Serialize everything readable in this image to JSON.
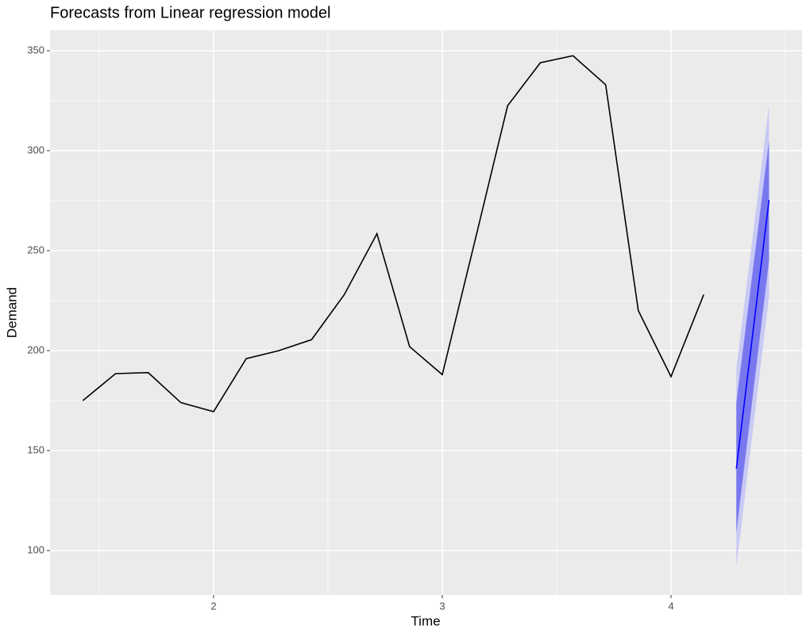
{
  "chart_data": {
    "type": "line",
    "title": "Forecasts from Linear regression model",
    "x_label": "Time",
    "y_label": "Demand",
    "xlim": [
      1.285,
      4.573
    ],
    "ylim": [
      77.8,
      360.3
    ],
    "xticks": [
      2,
      3,
      4
    ],
    "yticks": [
      100,
      150,
      200,
      250,
      300,
      350
    ],
    "x_minor_ticks": [
      1.5,
      2.5,
      3.5,
      4.5
    ],
    "y_minor_ticks": [
      125,
      175,
      225,
      275,
      325
    ],
    "grid": true,
    "series": [
      {
        "color": "#000000",
        "x": [
          1.4286,
          1.5714,
          1.7143,
          1.8571,
          2,
          2.1429,
          2.2857,
          2.4286,
          2.5714,
          2.7143,
          2.8571,
          3,
          3.1429,
          3.2857,
          3.4286,
          3.5714,
          3.7143,
          3.8571,
          4,
          4.1429
        ],
        "values": [
          175,
          188.5,
          189,
          174,
          169.5,
          196,
          200,
          205.5,
          228,
          258.5,
          202,
          188,
          255,
          322.5,
          344,
          347.5,
          333,
          220,
          187,
          228
        ]
      },
      {
        "color": "#0000ff",
        "x": [
          4.2857,
          4.4286
        ],
        "values": [
          141,
          275.4
        ],
        "intervals": [
          {
            "color": "#c9c9f5",
            "lower": [
              92,
              227
            ],
            "upper": [
              191,
              323
            ]
          },
          {
            "color": "#7878ee",
            "lower": [
              109,
              245
            ],
            "upper": [
              174,
              305
            ]
          }
        ]
      }
    ]
  }
}
